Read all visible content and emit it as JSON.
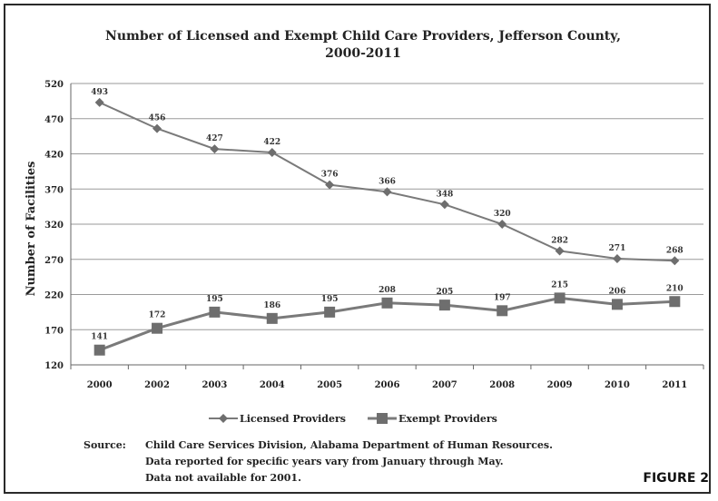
{
  "chart_data": {
    "type": "line",
    "title_line1": "Number of Licensed and Exempt Child Care Providers, Jefferson County,",
    "title_line2": "2000-2011",
    "ylabel": "Number of Facilities",
    "xlabel": "",
    "categories": [
      "2000",
      "2002",
      "2003",
      "2004",
      "2005",
      "2006",
      "2007",
      "2008",
      "2009",
      "2010",
      "2011"
    ],
    "y_ticks": [
      120,
      170,
      220,
      270,
      320,
      370,
      420,
      470,
      520
    ],
    "ylim": [
      120,
      520
    ],
    "grid": true,
    "legend_position": "bottom",
    "series": [
      {
        "name": "Licensed Providers",
        "marker": "diamond",
        "color": "#7a7a7a",
        "values": [
          493,
          456,
          427,
          422,
          376,
          366,
          348,
          320,
          282,
          271,
          268
        ],
        "labels": [
          "493",
          "456",
          "427",
          "422",
          "376",
          "366",
          "348",
          "320",
          "282",
          "271",
          "268"
        ]
      },
      {
        "name": "Exempt Providers",
        "marker": "square",
        "color": "#7a7a7a",
        "values": [
          141,
          172,
          195,
          186,
          195,
          208,
          205,
          197,
          215,
          206,
          210
        ],
        "labels": [
          "141",
          "172",
          "195",
          "186",
          "195",
          "208",
          "205",
          "197",
          "215",
          "206",
          "210"
        ]
      }
    ]
  },
  "source": {
    "label": "Source:",
    "line1": "Child Care Services Division, Alabama Department of Human Resources.",
    "line2": "Data reported for specific years vary from January through May.",
    "line3": "Data not available for 2001."
  },
  "figure_label": "FIGURE 2"
}
